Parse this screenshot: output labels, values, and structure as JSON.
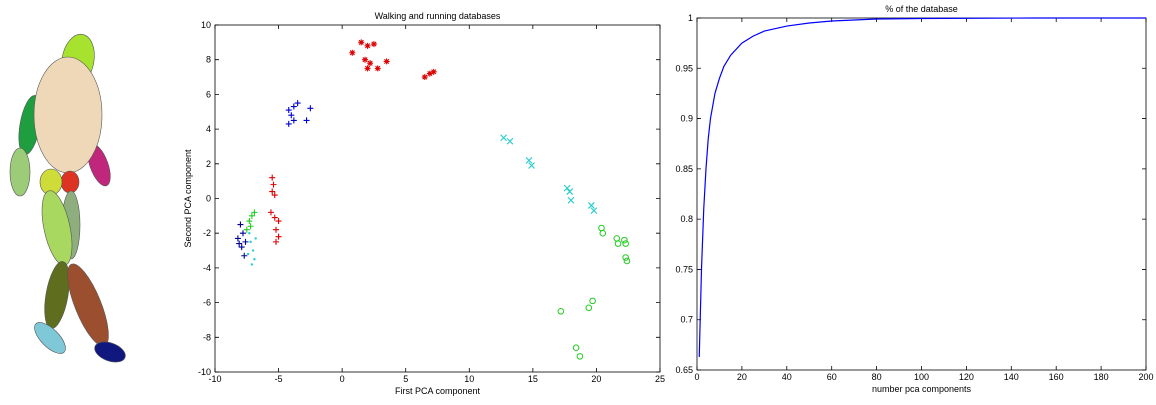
{
  "chart_data": [
    {
      "type": "scatter",
      "title": "Walking and running databases",
      "xlabel": "First PCA component",
      "ylabel": "Second PCA component",
      "xlim": [
        -10,
        25
      ],
      "ylim": [
        -10,
        10
      ],
      "xticks": [
        -10,
        -5,
        0,
        5,
        10,
        15,
        20,
        25
      ],
      "yticks": [
        -10,
        -8,
        -6,
        -4,
        -2,
        0,
        2,
        4,
        6,
        8,
        10
      ],
      "grid": false,
      "series": [
        {
          "color": "#0000cc",
          "marker": "+",
          "x": [
            -4.2,
            -3.8,
            -3.5,
            -4,
            -4.2,
            -3.8,
            -2.8,
            -2.5
          ],
          "y": [
            5.1,
            5.3,
            5.5,
            4.8,
            4.3,
            4.5,
            4.5,
            5.2
          ]
        },
        {
          "color": "#dd0000",
          "marker": "*",
          "x": [
            0.8,
            1.5,
            2,
            2.5,
            1.8,
            2.2,
            2.8,
            3.5,
            2,
            6.5,
            6.9,
            7.2
          ],
          "y": [
            8.4,
            9,
            8.8,
            8.9,
            8,
            7.8,
            7.5,
            7.9,
            7.5,
            7,
            7.2,
            7.3
          ]
        },
        {
          "color": "#dd0000",
          "marker": "+",
          "x": [
            -5.5,
            -5.4,
            -5.5,
            -5.3,
            -5.6,
            -5.3,
            -5,
            -5.2,
            -5,
            -5.2
          ],
          "y": [
            1.2,
            0.8,
            0.4,
            0.2,
            -0.8,
            -1.1,
            -1.3,
            -1.8,
            -2.2,
            -2.5
          ]
        },
        {
          "color": "#000099",
          "marker": "+",
          "x": [
            -8,
            -7.8,
            -8.2,
            -7.6,
            -7.9,
            -7.7,
            -8.1
          ],
          "y": [
            -1.5,
            -2,
            -2.3,
            -2.5,
            -2.8,
            -3.3,
            -2.6
          ]
        },
        {
          "color": "#22cc22",
          "marker": "+",
          "x": [
            -7.3,
            -7.1,
            -6.9,
            -7.5,
            -7.2
          ],
          "y": [
            -1.3,
            -1,
            -0.8,
            -1.8,
            -1.6
          ]
        },
        {
          "color": "#22cccc",
          "marker": ".",
          "x": [
            -7.2,
            -7,
            -6.9,
            -7.1,
            -7.3,
            -6.8,
            -7.4
          ],
          "y": [
            -2.5,
            -3,
            -3.5,
            -3.8,
            -2,
            -2.3,
            -3.2
          ]
        },
        {
          "color": "#22cccc",
          "marker": "x",
          "x": [
            12.7,
            13.2,
            14.7,
            14.9,
            17.7,
            18,
            17.9,
            19.6,
            19.8
          ],
          "y": [
            3.5,
            3.3,
            2.2,
            1.9,
            0.6,
            -0.1,
            0.4,
            -0.4,
            -0.7
          ]
        },
        {
          "color": "#22cc22",
          "marker": "o",
          "x": [
            20.4,
            20.5,
            21.6,
            21.7,
            22.2,
            22.3,
            22.3,
            22.4,
            17.2,
            19.4,
            19.7,
            18.4,
            18.7
          ],
          "y": [
            -1.7,
            -2,
            -2.3,
            -2.6,
            -2.4,
            -2.6,
            -3.4,
            -3.6,
            -6.5,
            -6.3,
            -5.9,
            -8.6,
            -9.1
          ]
        }
      ]
    },
    {
      "type": "line",
      "title": "% of the database",
      "xlabel": "number pca components",
      "xlim": [
        0,
        200
      ],
      "ylim": [
        0.65,
        1
      ],
      "xticks": [
        0,
        20,
        40,
        60,
        80,
        100,
        120,
        140,
        160,
        180,
        200
      ],
      "yticks": [
        0.65,
        0.7,
        0.75,
        0.8,
        0.85,
        0.9,
        0.95,
        1
      ],
      "grid": false,
      "series": [
        {
          "color": "#0000ff",
          "marker": "none",
          "x": [
            1,
            2,
            3,
            4,
            5,
            6,
            8,
            10,
            12,
            15,
            20,
            25,
            30,
            40,
            50,
            60,
            80,
            100,
            150,
            200
          ],
          "y": [
            0.663,
            0.75,
            0.81,
            0.85,
            0.88,
            0.9,
            0.925,
            0.94,
            0.952,
            0.963,
            0.975,
            0.982,
            0.987,
            0.992,
            0.995,
            0.997,
            0.999,
            0.9995,
            1,
            1
          ]
        }
      ]
    }
  ]
}
